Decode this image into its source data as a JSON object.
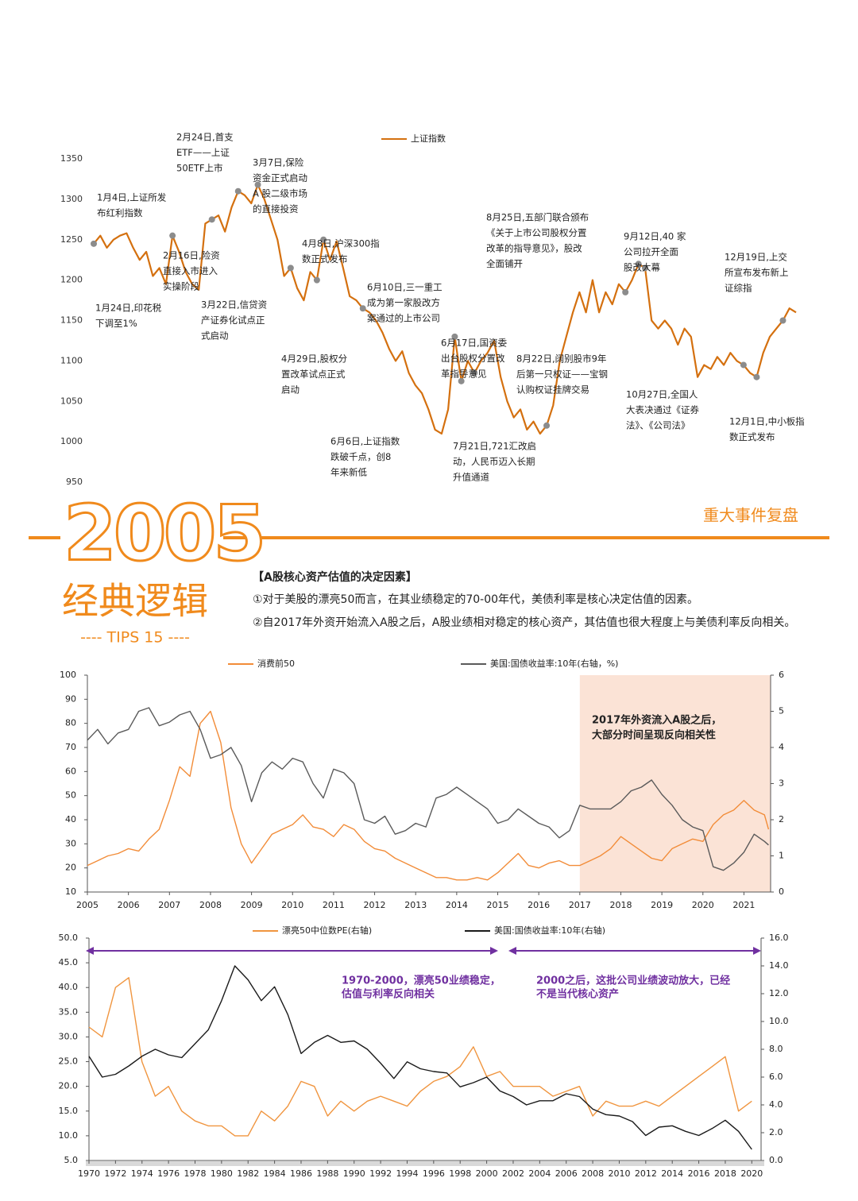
{
  "header": {
    "year": "2005",
    "subtitle": "经典逻辑",
    "tips": "---- TIPS 15 ----",
    "section": "重大事件复盘"
  },
  "intro": {
    "heading": "【A股核心资产估值的决定因素】",
    "points": [
      "①对于美股的漂亮50而言，在其业绩稳定的70-00年代，美债利率是核心决定估值的因素。",
      "②自2017年外资开始流入A股之后，A股业绩相对稳定的核心资产，其估值也很大程度上与美债利率反向相关。"
    ]
  },
  "chart_data": [
    {
      "type": "line",
      "series": [
        {
          "name": "上证指数",
          "color": "#d4700f",
          "values": [
            1245,
            1255,
            1240,
            1250,
            1255,
            1258,
            1240,
            1225,
            1235,
            1205,
            1215,
            1195,
            1255,
            1235,
            1210,
            1195,
            1188,
            1270,
            1275,
            1280,
            1260,
            1290,
            1310,
            1305,
            1295,
            1318,
            1300,
            1275,
            1250,
            1205,
            1215,
            1190,
            1175,
            1210,
            1200,
            1250,
            1225,
            1248,
            1215,
            1180,
            1175,
            1165,
            1160,
            1150,
            1135,
            1115,
            1100,
            1112,
            1085,
            1070,
            1060,
            1040,
            1015,
            1010,
            1040,
            1130,
            1075,
            1100,
            1085,
            1100,
            1110,
            1125,
            1080,
            1050,
            1030,
            1040,
            1015,
            1025,
            1010,
            1020,
            1045,
            1100,
            1130,
            1160,
            1185,
            1160,
            1200,
            1160,
            1185,
            1170,
            1195,
            1185,
            1200,
            1220,
            1215,
            1150,
            1140,
            1150,
            1140,
            1120,
            1140,
            1130,
            1080,
            1095,
            1090,
            1105,
            1095,
            1110,
            1100,
            1095,
            1085,
            1080,
            1110,
            1130,
            1140,
            1150,
            1165,
            1160
          ]
        }
      ],
      "ylim": [
        950,
        1350
      ],
      "yticks": [
        950,
        1000,
        1050,
        1100,
        1150,
        1200,
        1250,
        1300,
        1350
      ],
      "annotations": [
        [
          "2月24日,首支",
          "ETF——上证",
          "50ETF上市"
        ],
        [
          "3月7日,保险",
          "资金正式启动",
          "A 股二级市场",
          "的直接投资"
        ],
        [
          "1月4日,上证所发",
          "布红利指数"
        ],
        [
          "2月16日,险资",
          "直接入市进入",
          "实操阶段"
        ],
        [
          "4月8日,沪深300指",
          "数正式发布"
        ],
        [
          "1月24日,印花税",
          "下调至1%"
        ],
        [
          "3月22日,信贷资",
          "产证券化试点正",
          "式启动"
        ],
        [
          "6月10日,三一重工",
          "成为第一家股改方",
          "案通过的上市公司"
        ],
        [
          "8月25日,五部门联合颁布",
          "《关于上市公司股权分置",
          "改革的指导意见》，股改",
          "全面铺开"
        ],
        [
          "9月12日,40 家",
          "公司拉开全面",
          "股改大幕"
        ],
        [
          "12月19日,上交",
          "所宣布发布新上",
          "证综指"
        ],
        [
          "4月29日,股权分",
          "置改革试点正式",
          "启动"
        ],
        [
          "6月17日,国资委",
          "出台股权分置改",
          "革指导意见"
        ],
        [
          "8月22日,阔别股市9年",
          "后第一只权证——宝钢",
          "认购权证挂牌交易"
        ],
        [
          "10月27日,全国人",
          "大表决通过《证券",
          "法》、《公司法》"
        ],
        [
          "12月1日,中小板指",
          "数正式发布"
        ],
        [
          "6月6日,上证指数",
          "跌破千点，创8",
          "年来新低"
        ],
        [
          "7月21日,721汇改启",
          "动，人民币迈入长期",
          "升值通道"
        ]
      ]
    },
    {
      "type": "line",
      "axis_lines": true,
      "x": [
        2005,
        2005.25,
        2005.5,
        2005.75,
        2006,
        2006.25,
        2006.5,
        2006.75,
        2007,
        2007.25,
        2007.5,
        2007.75,
        2008,
        2008.25,
        2008.5,
        2008.75,
        2009,
        2009.25,
        2009.5,
        2009.75,
        2010,
        2010.25,
        2010.5,
        2010.75,
        2011,
        2011.25,
        2011.5,
        2011.75,
        2012,
        2012.25,
        2012.5,
        2012.75,
        2013,
        2013.25,
        2013.5,
        2013.75,
        2014,
        2014.25,
        2014.5,
        2014.75,
        2015,
        2015.25,
        2015.5,
        2015.75,
        2016,
        2016.25,
        2016.5,
        2016.75,
        2017,
        2017.25,
        2017.5,
        2017.75,
        2018,
        2018.25,
        2018.5,
        2018.75,
        2019,
        2019.25,
        2019.5,
        2019.75,
        2020,
        2020.25,
        2020.5,
        2020.75,
        2021,
        2021.25,
        2021.5,
        2021.6
      ],
      "series": [
        {
          "name": "消费前50",
          "color": "#f28c38",
          "values": [
            21,
            23,
            25,
            26,
            28,
            27,
            32,
            36,
            48,
            62,
            58,
            80,
            85,
            72,
            45,
            30,
            22,
            28,
            34,
            36,
            38,
            42,
            37,
            36,
            33,
            38,
            36,
            31,
            28,
            27,
            24,
            22,
            20,
            18,
            16,
            16,
            15,
            15,
            16,
            15,
            18,
            22,
            26,
            21,
            20,
            22,
            23,
            21,
            21,
            23,
            25,
            28,
            33,
            30,
            27,
            24,
            23,
            28,
            30,
            32,
            31,
            38,
            42,
            44,
            48,
            44,
            42,
            36
          ]
        },
        {
          "name": "美国:国债收益率:10年(右轴，%)",
          "color": "#5a5a5a",
          "axis": "y2",
          "values": [
            4.2,
            4.5,
            4.1,
            4.4,
            4.5,
            5.0,
            5.1,
            4.6,
            4.7,
            4.9,
            5.0,
            4.5,
            3.7,
            3.8,
            4.0,
            3.5,
            2.5,
            3.3,
            3.6,
            3.4,
            3.7,
            3.6,
            3.0,
            2.6,
            3.4,
            3.3,
            3.0,
            2.0,
            1.9,
            2.1,
            1.6,
            1.7,
            1.9,
            1.8,
            2.6,
            2.7,
            2.9,
            2.7,
            2.5,
            2.3,
            1.9,
            2.0,
            2.3,
            2.1,
            1.9,
            1.8,
            1.5,
            1.7,
            2.4,
            2.3,
            2.3,
            2.3,
            2.5,
            2.8,
            2.9,
            3.1,
            2.7,
            2.4,
            2.0,
            1.8,
            1.7,
            0.7,
            0.6,
            0.8,
            1.1,
            1.6,
            1.4,
            1.3
          ]
        }
      ],
      "xlim": [
        2005,
        2021.65
      ],
      "xticks": [
        2005,
        2006,
        2007,
        2008,
        2009,
        2010,
        2011,
        2012,
        2013,
        2014,
        2015,
        2016,
        2017,
        2018,
        2019,
        2020,
        2021
      ],
      "ylim": [
        10,
        100
      ],
      "yticks": [
        10,
        20,
        30,
        40,
        50,
        60,
        70,
        80,
        90,
        100
      ],
      "y2lim": [
        0,
        6
      ],
      "y2ticks": [
        0,
        1,
        2,
        3,
        4,
        5,
        6
      ],
      "highlight": {
        "from": 2017,
        "color": "#fbe3d6"
      },
      "annotations": [
        [
          "2017年外资流入A股之后，",
          "大部分时间呈现反向相关性"
        ]
      ]
    },
    {
      "type": "line",
      "axis_lines": true,
      "x": [
        1970,
        1971,
        1972,
        1973,
        1974,
        1975,
        1976,
        1977,
        1978,
        1979,
        1980,
        1981,
        1982,
        1983,
        1984,
        1985,
        1986,
        1987,
        1988,
        1989,
        1990,
        1991,
        1992,
        1993,
        1994,
        1995,
        1996,
        1997,
        1998,
        1999,
        2000,
        2001,
        2002,
        2003,
        2004,
        2005,
        2006,
        2007,
        2008,
        2009,
        2010,
        2011,
        2012,
        2013,
        2014,
        2015,
        2016,
        2017,
        2018,
        2019,
        2020
      ],
      "series": [
        {
          "name": "漂亮50中位数PE(右轴)",
          "color": "#f0953f",
          "values": [
            32,
            30,
            40,
            42,
            25,
            18,
            20,
            15,
            13,
            12,
            12,
            10,
            10,
            15,
            13,
            16,
            21,
            20,
            14,
            17,
            15,
            17,
            18,
            17,
            16,
            19,
            21,
            22,
            24,
            28,
            22,
            23,
            20,
            20,
            20,
            18,
            19,
            20,
            14,
            17,
            16,
            16,
            17,
            16,
            18,
            20,
            22,
            24,
            26,
            15,
            17
          ]
        },
        {
          "name": "美国:国债收益率:10年(右轴)",
          "color": "#1a1a1a",
          "axis": "y2",
          "values": [
            7.5,
            6.0,
            6.2,
            6.8,
            7.5,
            8.0,
            7.6,
            7.4,
            8.4,
            9.4,
            11.5,
            14.0,
            13.0,
            11.5,
            12.5,
            10.5,
            7.7,
            8.5,
            9.0,
            8.5,
            8.6,
            8.0,
            7.0,
            5.9,
            7.1,
            6.6,
            6.4,
            6.3,
            5.3,
            5.6,
            6.0,
            5.0,
            4.6,
            4.0,
            4.3,
            4.3,
            4.8,
            4.6,
            3.7,
            3.3,
            3.2,
            2.8,
            1.8,
            2.4,
            2.5,
            2.1,
            1.8,
            2.3,
            2.9,
            2.1,
            0.8
          ]
        }
      ],
      "xlim": [
        1970,
        2020.7
      ],
      "xticks": [
        1970,
        1972,
        1974,
        1976,
        1978,
        1980,
        1982,
        1984,
        1986,
        1988,
        1990,
        1992,
        1994,
        1996,
        1998,
        2000,
        2002,
        2004,
        2006,
        2008,
        2010,
        2012,
        2014,
        2016,
        2018,
        2020
      ],
      "ylim": [
        5,
        50
      ],
      "yticks": [
        {
          "value": 5,
          "label": "5.0"
        },
        {
          "value": 10,
          "label": "10.0"
        },
        {
          "value": 15,
          "label": "15.0"
        },
        {
          "value": 20,
          "label": "20.0"
        },
        {
          "value": 25,
          "label": "25.0"
        },
        {
          "value": 30,
          "label": "30.0"
        },
        {
          "value": 35,
          "label": "35.0"
        },
        {
          "value": 40,
          "label": "40.0"
        },
        {
          "value": 45,
          "label": "45.0"
        },
        {
          "value": 50,
          "label": "50.0"
        }
      ],
      "y2lim": [
        0,
        16
      ],
      "y2ticks": [
        {
          "value": 0,
          "label": "0.0"
        },
        {
          "value": 2,
          "label": "2.0"
        },
        {
          "value": 4,
          "label": "4.0"
        },
        {
          "value": 6,
          "label": "6.0"
        },
        {
          "value": 8,
          "label": "8.0"
        },
        {
          "value": 10,
          "label": "10.0"
        },
        {
          "value": 12,
          "label": "12.0"
        },
        {
          "value": 14,
          "label": "14.0"
        },
        {
          "value": 16,
          "label": "16.0"
        }
      ],
      "annotations": [
        [
          "1970-2000，漂亮50业绩稳定，",
          "估值与利率反向相关"
        ],
        [
          "2000之后，这批公司业绩波动放大，已经",
          "不是当代核心资产"
        ]
      ]
    }
  ]
}
